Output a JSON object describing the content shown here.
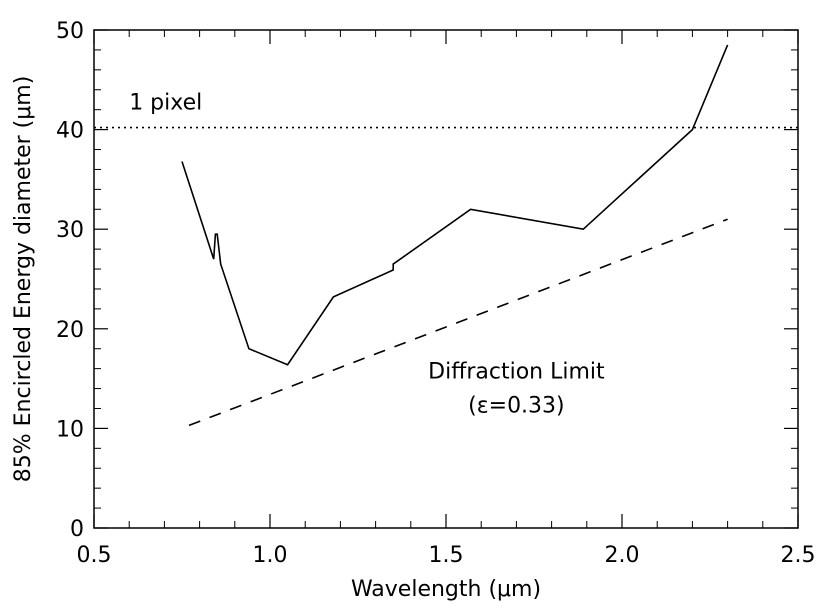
{
  "chart_data": {
    "type": "line",
    "title": "",
    "xlabel": "Wavelength (μm)",
    "ylabel": "85% Encircled Energy diameter (μm)",
    "xlim": [
      0.5,
      2.5
    ],
    "ylim": [
      0,
      50
    ],
    "x_ticks": [
      0.5,
      1.0,
      1.5,
      2.0,
      2.5
    ],
    "x_tick_labels": [
      "0.5",
      "1.0",
      "1.5",
      "2.0",
      "2.5"
    ],
    "y_ticks": [
      0,
      10,
      20,
      30,
      40,
      50
    ],
    "y_tick_labels": [
      "0",
      "10",
      "20",
      "30",
      "40",
      "50"
    ],
    "grid": false,
    "series": [
      {
        "name": "85% Encircled Energy diameter",
        "style": "solid",
        "x": [
          0.75,
          0.84,
          0.845,
          0.85,
          0.86,
          0.94,
          1.05,
          1.18,
          1.35,
          1.35,
          1.57,
          1.89,
          2.2,
          2.3
        ],
        "y": [
          36.8,
          27.0,
          29.5,
          29.5,
          26.5,
          18.0,
          16.4,
          23.2,
          25.9,
          26.5,
          32.0,
          30.0,
          40.0,
          48.5
        ]
      },
      {
        "name": "Diffraction Limit",
        "style": "dashed",
        "x": [
          0.77,
          2.3
        ],
        "y": [
          10.3,
          31.0
        ]
      },
      {
        "name": "1 pixel",
        "style": "dotted",
        "x": [
          0.5,
          2.5
        ],
        "y": [
          40.2,
          40.2
        ]
      }
    ],
    "annotations": [
      {
        "text": "1 pixel",
        "x": 0.6,
        "y": 42.0
      },
      {
        "text": "Diffraction Limit",
        "x": 1.7,
        "y": 15.0
      },
      {
        "text": "(ε=0.33)",
        "x": 1.7,
        "y": 11.6
      }
    ]
  }
}
